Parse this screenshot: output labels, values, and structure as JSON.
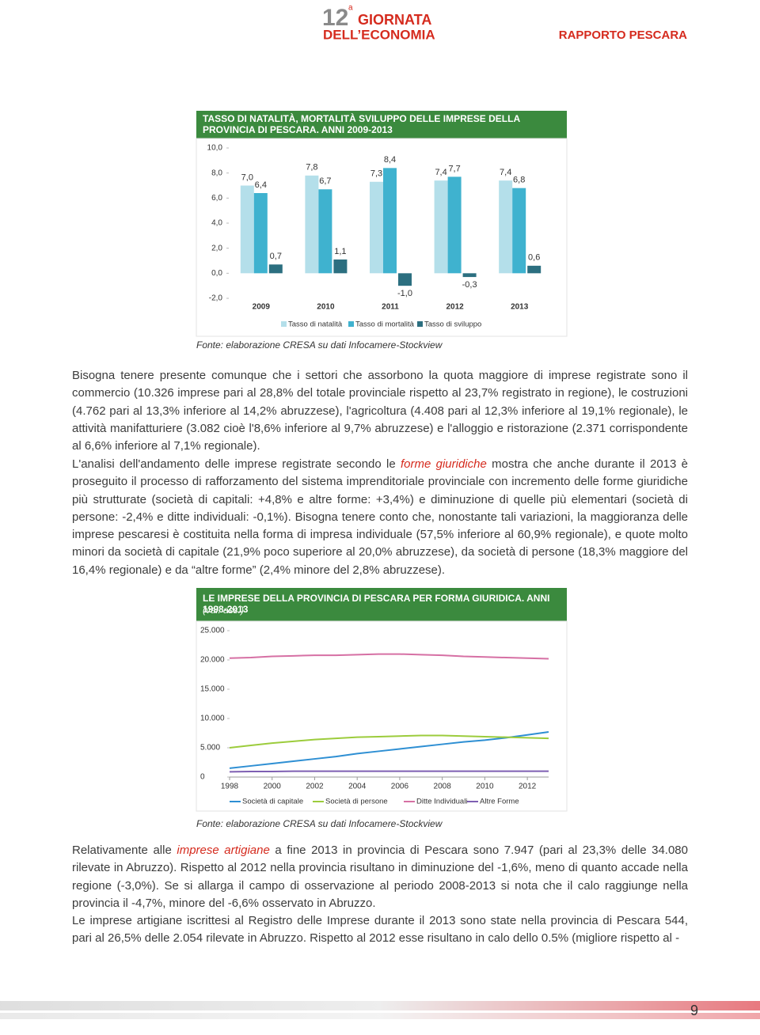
{
  "header": {
    "logo_number": "12",
    "logo_superscript": "a",
    "logo_line1": "GIORNATA",
    "logo_line2": "DELL’ECONOMIA",
    "report": "RAPPORTO PESCARA"
  },
  "chart_data": [
    {
      "type": "bar",
      "title": "TASSO DI NATALITÀ, MORTALITÀ SVILUPPO DELLE IMPRESE DELLA PROVINCIA DI PESCARA. ANNI 2009-2013",
      "categories": [
        "2009",
        "2010",
        "2011",
        "2012",
        "2013"
      ],
      "series": [
        {
          "name": "Tasso di natalità",
          "color": "#b4dfea",
          "values": [
            7.0,
            7.8,
            7.3,
            7.4,
            7.4
          ],
          "value_labels": [
            "7,0",
            "7,8",
            "7,3",
            "7,4",
            "7,4"
          ]
        },
        {
          "name": "Tasso di mortalità",
          "color": "#3fb2cf",
          "values": [
            6.4,
            6.7,
            8.4,
            7.7,
            6.8
          ],
          "value_labels": [
            "6,4",
            "6,7",
            "8,4",
            "7,7",
            "6,8"
          ]
        },
        {
          "name": "Tasso di sviluppo",
          "color": "#2c6f80",
          "values": [
            0.7,
            1.1,
            -1.0,
            -0.3,
            0.6
          ],
          "value_labels": [
            "0,7",
            "1,1",
            "-1,0",
            "-0,3",
            "0,6"
          ]
        }
      ],
      "ylim": [
        -2,
        10
      ],
      "yticks": [
        {
          "value": -2,
          "label": "-2,0"
        },
        {
          "value": 0,
          "label": "0,0"
        },
        {
          "value": 2,
          "label": "2,0"
        },
        {
          "value": 4,
          "label": "4,0"
        },
        {
          "value": 6,
          "label": "6,0"
        },
        {
          "value": 8,
          "label": "8,0"
        },
        {
          "value": 10,
          "label": "10,0"
        }
      ],
      "grid": false,
      "legend": "bottom",
      "source": "Fonte: elaborazione CRESA su dati Infocamere-Stockview"
    },
    {
      "type": "line",
      "title": "LE IMPRESE DELLA PROVINCIA DI PESCARA PER FORMA GIURIDICA. ANNI 1998-2013",
      "subtitle": "(val. ass.)",
      "x": [
        1998,
        1999,
        2000,
        2001,
        2002,
        2003,
        2004,
        2005,
        2006,
        2007,
        2008,
        2009,
        2010,
        2011,
        2012,
        2013
      ],
      "series": [
        {
          "name": "Società di capitale",
          "color": "#2e8fd3",
          "values": [
            1500,
            1900,
            2300,
            2700,
            3100,
            3500,
            4000,
            4400,
            4800,
            5200,
            5600,
            6000,
            6300,
            6700,
            7200,
            7700
          ]
        },
        {
          "name": "Società di persone",
          "color": "#9ccc3c",
          "values": [
            5000,
            5400,
            5800,
            6100,
            6400,
            6600,
            6800,
            6900,
            7000,
            7100,
            7100,
            7000,
            6900,
            6800,
            6700,
            6600
          ]
        },
        {
          "name": "Ditte Individuali",
          "color": "#d670a4",
          "values": [
            20300,
            20400,
            20600,
            20700,
            20800,
            20800,
            20900,
            21000,
            21000,
            20900,
            20800,
            20600,
            20500,
            20400,
            20300,
            20200
          ]
        },
        {
          "name": "Altre Forme",
          "color": "#7e5fb2",
          "values": [
            900,
            950,
            950,
            1000,
            1000,
            1000,
            1000,
            1000,
            1000,
            1000,
            1000,
            1000,
            1000,
            1000,
            1000,
            1000
          ]
        }
      ],
      "xlim": [
        1998,
        2013
      ],
      "xticks": [
        1998,
        2000,
        2002,
        2004,
        2006,
        2008,
        2010,
        2012
      ],
      "ylim": [
        0,
        25000
      ],
      "yticks": [
        0,
        {
          "value": 5000,
          "label": "5.000"
        },
        {
          "value": 10000,
          "label": "10.000"
        },
        {
          "value": 15000,
          "label": "15.000"
        },
        {
          "value": 20000,
          "label": "20.000"
        },
        {
          "value": 25000,
          "label": "25.000"
        }
      ],
      "grid": false,
      "legend": "bottom",
      "source": "Fonte: elaborazione CRESA su dati Infocamere-Stockview"
    }
  ],
  "paragraphs": [
    [
      {
        "text": "Bisogna tenere presente comunque che i settori che assorbono la quota maggiore di imprese registrate sono il commercio (10.326 imprese pari al 28,8% del totale provinciale rispetto al 23,7% registrato in regione), le costruzioni (4.762 pari al 13,3% inferiore al 14,2% abruzzese), l'agricoltura (4.408 pari al 12,3% inferiore al 19,1% regionale), le attività manifatturiere (3.082 cioè l'8,6% inferiore al 9,7% abruzzese) e l'alloggio e ristorazione (2.371 corrispondente al 6,6% inferiore al 7,1% regionale)."
      }
    ],
    [
      {
        "text": "L'analisi dell'andamento delle imprese registrate secondo le "
      },
      {
        "text": "forme giuridiche",
        "em": true
      },
      {
        "text": " mostra che anche durante il 2013 è proseguito il processo di rafforzamento del sistema imprenditoriale provinciale con incremento delle forme giuridiche più strutturate (società di capitali: +4,8% e altre forme: +3,4%) e diminuzione di quelle più elementari (società di persone: -2,4% e ditte individuali: -0,1%). Bisogna tenere conto che, nonostante tali variazioni, la maggioranza delle imprese pescaresi è costituita nella forma di impresa individuale (57,5% inferiore al 60,9% regionale), e quote molto minori da società di capitale (21,9% poco superiore al 20,0% abruzzese), da società di persone (18,3% maggiore del 16,4% regionale) e da “altre forme” (2,4% minore del 2,8% abruzzese)."
      }
    ],
    [
      {
        "text": "Relativamente alle "
      },
      {
        "text": "imprese artigiane",
        "em": true
      },
      {
        "text": " a fine 2013 in provincia di Pescara sono 7.947 (pari al 23,3% delle 34.080 rilevate in Abruzzo). Rispetto al 2012 nella provincia risultano in diminuzione del -1,6%, meno di quanto accade nella regione (-3,0%). Se si allarga il campo di osservazione al periodo 2008-2013 si nota che il calo raggiunge nella provincia il -4,7%, minore del -6,6% osservato in Abruzzo."
      }
    ],
    [
      {
        "text": "Le imprese artigiane iscrittesi al Registro delle Imprese durante il 2013 sono state nella provincia di Pescara 544, pari al 26,5% delle 2.054 rilevate in Abruzzo. Rispetto al 2012 esse risultano in calo dello 0.5% (migliore rispetto al -"
      }
    ]
  ],
  "page_number": "9"
}
